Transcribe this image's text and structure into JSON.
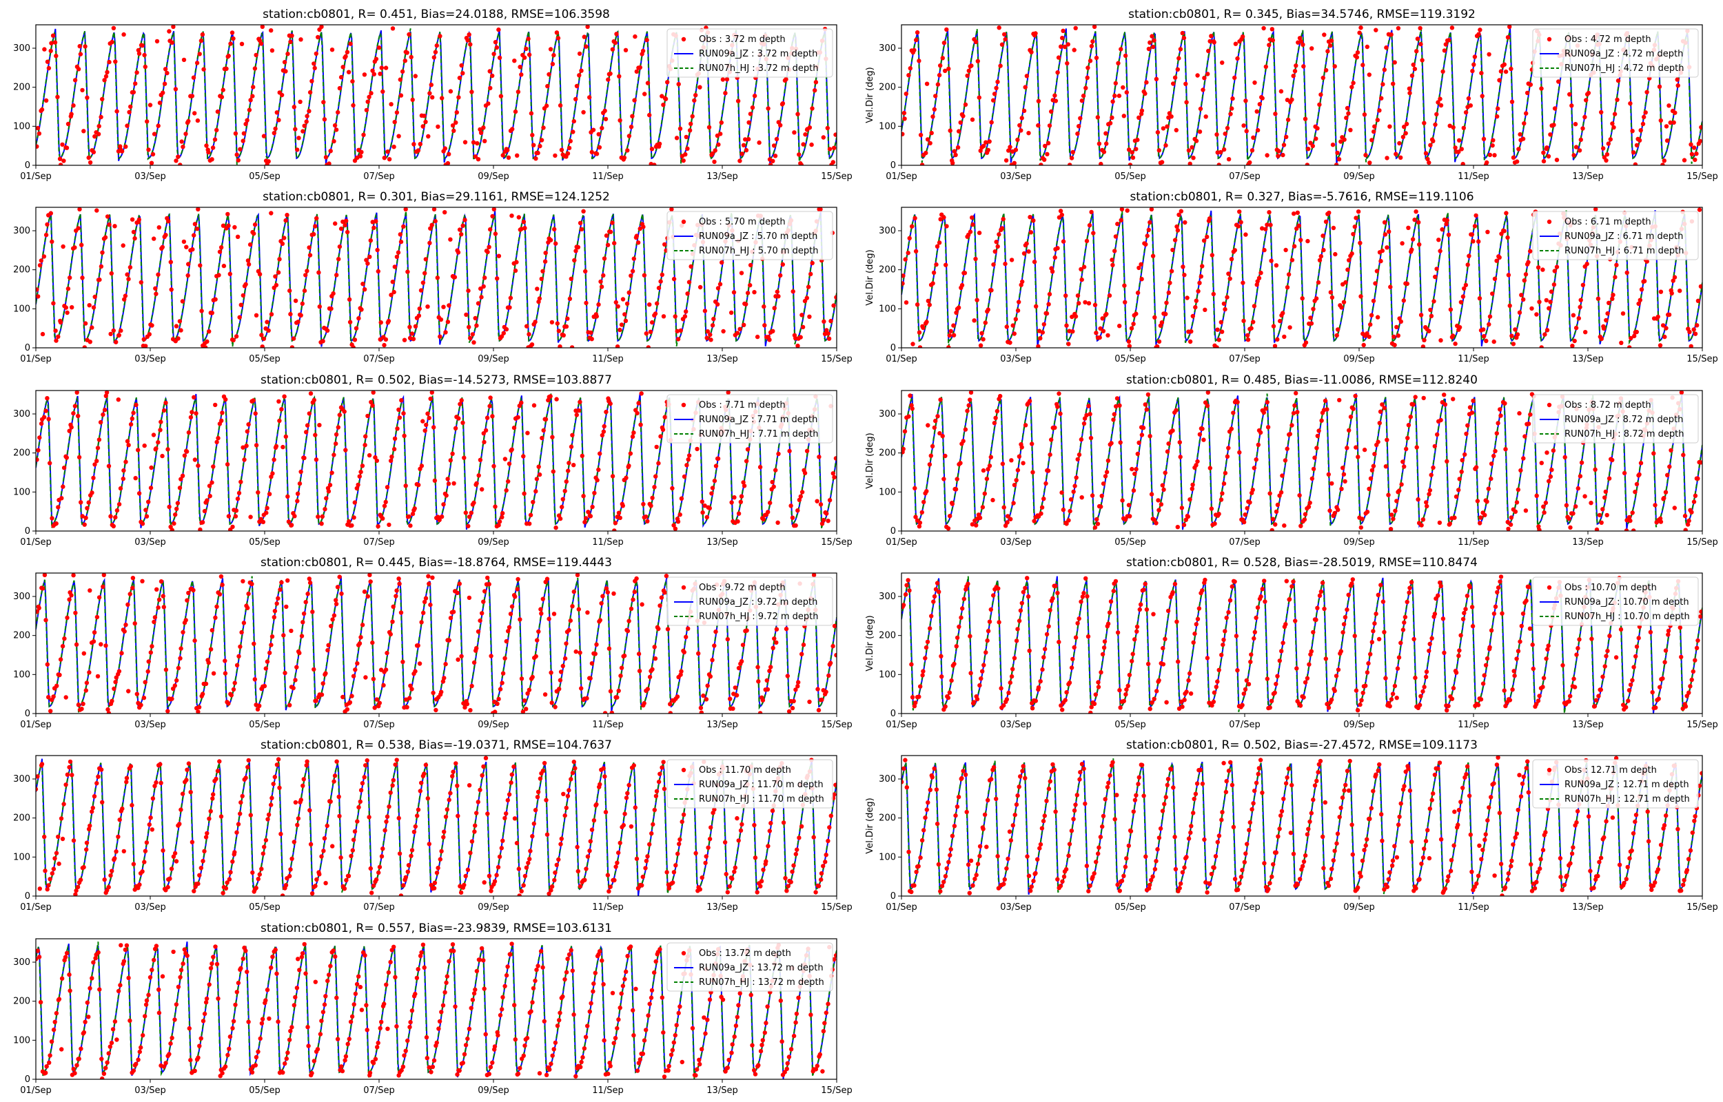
{
  "figure": {
    "colors": {
      "obs": "#ff0000",
      "run09a": "#0000ff",
      "run07h": "#008000"
    }
  },
  "chart_data": [
    {
      "type": "line",
      "title": "station:cb0801, R= 0.451, Bias=24.0188, RMSE=106.3598",
      "ylabel": "",
      "xticks": [
        "01/Sep",
        "03/Sep",
        "05/Sep",
        "07/Sep",
        "09/Sep",
        "11/Sep",
        "13/Sep",
        "15/Sep"
      ],
      "yticks": [
        0,
        100,
        200,
        300
      ],
      "ylim": [
        0,
        360
      ],
      "xlim": [
        "2000-09-01",
        "2000-09-15"
      ],
      "grid": false,
      "legend_position": "top-right",
      "phase": 0.2,
      "obs_scatter": "high",
      "series": [
        {
          "name": "Obs : 3.72 m depth",
          "kind": "scatter"
        },
        {
          "name": "RUN09a_JZ : 3.72 m depth",
          "kind": "line"
        },
        {
          "name": "RUN07h_HJ : 3.72 m depth",
          "kind": "dashed-line"
        }
      ]
    },
    {
      "type": "line",
      "title": "station:cb0801, R= 0.345, Bias=34.5746, RMSE=119.3192",
      "ylabel": "Vel.Dir (deg)",
      "xticks": [
        "01/Sep",
        "03/Sep",
        "05/Sep",
        "07/Sep",
        "09/Sep",
        "11/Sep",
        "13/Sep",
        "15/Sep"
      ],
      "yticks": [
        0,
        100,
        200,
        300
      ],
      "ylim": [
        0,
        360
      ],
      "xlim": [
        "2000-09-01",
        "2000-09-15"
      ],
      "grid": false,
      "legend_position": "top-right",
      "phase": 0.3,
      "obs_scatter": "high",
      "series": [
        {
          "name": "Obs : 4.72 m depth",
          "kind": "scatter"
        },
        {
          "name": "RUN09a_JZ : 4.72 m depth",
          "kind": "line"
        },
        {
          "name": "RUN07h_HJ : 4.72 m depth",
          "kind": "dashed-line"
        }
      ]
    },
    {
      "type": "line",
      "title": "station:cb0801, R= 0.301, Bias=29.1161, RMSE=124.1252",
      "ylabel": "",
      "xticks": [
        "01/Sep",
        "03/Sep",
        "05/Sep",
        "07/Sep",
        "09/Sep",
        "11/Sep",
        "13/Sep",
        "15/Sep"
      ],
      "yticks": [
        0,
        100,
        200,
        300
      ],
      "ylim": [
        0,
        360
      ],
      "xlim": [
        "2000-09-01",
        "2000-09-15"
      ],
      "grid": false,
      "legend_position": "top-right",
      "phase": 0.35,
      "obs_scatter": "high",
      "series": [
        {
          "name": "Obs : 5.70 m depth",
          "kind": "scatter"
        },
        {
          "name": "RUN09a_JZ : 5.70 m depth",
          "kind": "line"
        },
        {
          "name": "RUN07h_HJ : 5.70 m depth",
          "kind": "dashed-line"
        }
      ]
    },
    {
      "type": "line",
      "title": "station:cb0801, R= 0.327, Bias=-5.7616, RMSE=119.1106",
      "ylabel": "Vel.Dir (deg)",
      "xticks": [
        "01/Sep",
        "03/Sep",
        "05/Sep",
        "07/Sep",
        "09/Sep",
        "11/Sep",
        "13/Sep",
        "15/Sep"
      ],
      "yticks": [
        0,
        100,
        200,
        300
      ],
      "ylim": [
        0,
        360
      ],
      "xlim": [
        "2000-09-01",
        "2000-09-15"
      ],
      "grid": false,
      "legend_position": "top-right",
      "phase": 0.4,
      "obs_scatter": "high",
      "series": [
        {
          "name": "Obs : 6.71 m depth",
          "kind": "scatter"
        },
        {
          "name": "RUN09a_JZ : 6.71 m depth",
          "kind": "line"
        },
        {
          "name": "RUN07h_HJ : 6.71 m depth",
          "kind": "dashed-line"
        }
      ]
    },
    {
      "type": "line",
      "title": "station:cb0801, R= 0.502, Bias=-14.5273, RMSE=103.8877",
      "ylabel": "",
      "xticks": [
        "01/Sep",
        "03/Sep",
        "05/Sep",
        "07/Sep",
        "09/Sep",
        "11/Sep",
        "13/Sep",
        "15/Sep"
      ],
      "yticks": [
        0,
        100,
        200,
        300
      ],
      "ylim": [
        0,
        360
      ],
      "xlim": [
        "2000-09-01",
        "2000-09-15"
      ],
      "grid": false,
      "legend_position": "top-right",
      "phase": 0.45,
      "obs_scatter": "medium",
      "series": [
        {
          "name": "Obs : 7.71 m depth",
          "kind": "scatter"
        },
        {
          "name": "RUN09a_JZ : 7.71 m depth",
          "kind": "line"
        },
        {
          "name": "RUN07h_HJ : 7.71 m depth",
          "kind": "dashed-line"
        }
      ]
    },
    {
      "type": "line",
      "title": "station:cb0801, R= 0.485, Bias=-11.0086, RMSE=112.8240",
      "ylabel": "Vel.Dir (deg)",
      "xticks": [
        "01/Sep",
        "03/Sep",
        "05/Sep",
        "07/Sep",
        "09/Sep",
        "11/Sep",
        "13/Sep",
        "15/Sep"
      ],
      "yticks": [
        0,
        100,
        200,
        300
      ],
      "ylim": [
        0,
        360
      ],
      "xlim": [
        "2000-09-01",
        "2000-09-15"
      ],
      "grid": false,
      "legend_position": "top-right",
      "phase": 0.5,
      "obs_scatter": "medium",
      "series": [
        {
          "name": "Obs : 8.72 m depth",
          "kind": "scatter"
        },
        {
          "name": "RUN09a_JZ : 8.72 m depth",
          "kind": "line"
        },
        {
          "name": "RUN07h_HJ : 8.72 m depth",
          "kind": "dashed-line"
        }
      ]
    },
    {
      "type": "line",
      "title": "station:cb0801, R= 0.445, Bias=-18.8764, RMSE=119.4443",
      "ylabel": "",
      "xticks": [
        "01/Sep",
        "03/Sep",
        "05/Sep",
        "07/Sep",
        "09/Sep",
        "11/Sep",
        "13/Sep",
        "15/Sep"
      ],
      "yticks": [
        0,
        100,
        200,
        300
      ],
      "ylim": [
        0,
        360
      ],
      "xlim": [
        "2000-09-01",
        "2000-09-15"
      ],
      "grid": false,
      "legend_position": "top-right",
      "phase": 0.55,
      "obs_scatter": "medium",
      "series": [
        {
          "name": "Obs : 9.72 m depth",
          "kind": "scatter"
        },
        {
          "name": "RUN09a_JZ : 9.72 m depth",
          "kind": "line"
        },
        {
          "name": "RUN07h_HJ : 9.72 m depth",
          "kind": "dashed-line"
        }
      ]
    },
    {
      "type": "line",
      "title": "station:cb0801, R= 0.528, Bias=-28.5019, RMSE=110.8474",
      "ylabel": "Vel.Dir (deg)",
      "xticks": [
        "01/Sep",
        "03/Sep",
        "05/Sep",
        "07/Sep",
        "09/Sep",
        "11/Sep",
        "13/Sep",
        "15/Sep"
      ],
      "yticks": [
        0,
        100,
        200,
        300
      ],
      "ylim": [
        0,
        360
      ],
      "xlim": [
        "2000-09-01",
        "2000-09-15"
      ],
      "grid": false,
      "legend_position": "top-right",
      "phase": 0.6,
      "obs_scatter": "low",
      "series": [
        {
          "name": "Obs : 10.70 m depth",
          "kind": "scatter"
        },
        {
          "name": "RUN09a_JZ : 10.70 m depth",
          "kind": "line"
        },
        {
          "name": "RUN07h_HJ : 10.70 m depth",
          "kind": "dashed-line"
        }
      ]
    },
    {
      "type": "line",
      "title": "station:cb0801, R= 0.538, Bias=-19.0371, RMSE=104.7637",
      "ylabel": "",
      "xticks": [
        "01/Sep",
        "03/Sep",
        "05/Sep",
        "07/Sep",
        "09/Sep",
        "11/Sep",
        "13/Sep",
        "15/Sep"
      ],
      "yticks": [
        0,
        100,
        200,
        300
      ],
      "ylim": [
        0,
        360
      ],
      "xlim": [
        "2000-09-01",
        "2000-09-15"
      ],
      "grid": false,
      "legend_position": "top-right",
      "phase": 0.65,
      "obs_scatter": "low",
      "series": [
        {
          "name": "Obs : 11.70 m depth",
          "kind": "scatter"
        },
        {
          "name": "RUN09a_JZ : 11.70 m depth",
          "kind": "line"
        },
        {
          "name": "RUN07h_HJ : 11.70 m depth",
          "kind": "dashed-line"
        }
      ]
    },
    {
      "type": "line",
      "title": "station:cb0801, R= 0.502, Bias=-27.4572, RMSE=109.1173",
      "ylabel": "Vel.Dir (deg)",
      "xticks": [
        "01/Sep",
        "03/Sep",
        "05/Sep",
        "07/Sep",
        "09/Sep",
        "11/Sep",
        "13/Sep",
        "15/Sep"
      ],
      "yticks": [
        0,
        100,
        200,
        300
      ],
      "ylim": [
        0,
        360
      ],
      "xlim": [
        "2000-09-01",
        "2000-09-15"
      ],
      "grid": false,
      "legend_position": "top-right",
      "phase": 0.7,
      "obs_scatter": "low",
      "series": [
        {
          "name": "Obs : 12.71 m depth",
          "kind": "scatter"
        },
        {
          "name": "RUN09a_JZ : 12.71 m depth",
          "kind": "line"
        },
        {
          "name": "RUN07h_HJ : 12.71 m depth",
          "kind": "dashed-line"
        }
      ]
    },
    {
      "type": "line",
      "title": "station:cb0801, R= 0.557, Bias=-23.9839, RMSE=103.6131",
      "ylabel": "",
      "xticks": [
        "01/Sep",
        "03/Sep",
        "05/Sep",
        "07/Sep",
        "09/Sep",
        "11/Sep",
        "13/Sep",
        "15/Sep"
      ],
      "yticks": [
        0,
        100,
        200,
        300
      ],
      "ylim": [
        0,
        360
      ],
      "xlim": [
        "2000-09-01",
        "2000-09-15"
      ],
      "grid": false,
      "legend_position": "top-right",
      "phase": 0.75,
      "obs_scatter": "low",
      "series": [
        {
          "name": "Obs : 13.72 m depth",
          "kind": "scatter"
        },
        {
          "name": "RUN09a_JZ : 13.72 m depth",
          "kind": "line"
        },
        {
          "name": "RUN07h_HJ : 13.72 m depth",
          "kind": "dashed-line"
        }
      ]
    }
  ]
}
